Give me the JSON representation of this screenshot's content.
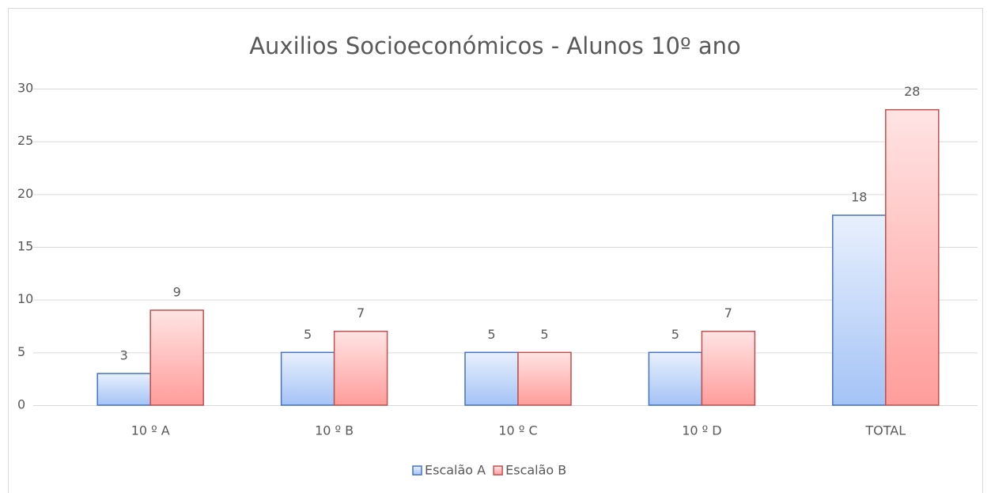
{
  "chart_data": {
    "type": "bar",
    "title": "Auxilios Socioeconómicos - Alunos 10º ano",
    "categories": [
      "10 º A",
      "10 º B",
      "10 º C",
      "10 º D",
      "TOTAL"
    ],
    "series": [
      {
        "name": "Escalão A",
        "color": "#4472c4",
        "values": [
          3,
          5,
          5,
          5,
          18
        ]
      },
      {
        "name": "Escalão B",
        "color": "#c0504d",
        "values": [
          9,
          7,
          5,
          7,
          28
        ]
      }
    ],
    "ylim": [
      0,
      30
    ],
    "yticks": [
      0,
      5,
      10,
      15,
      20,
      25,
      30
    ],
    "grid": true,
    "legend": "bottom"
  }
}
